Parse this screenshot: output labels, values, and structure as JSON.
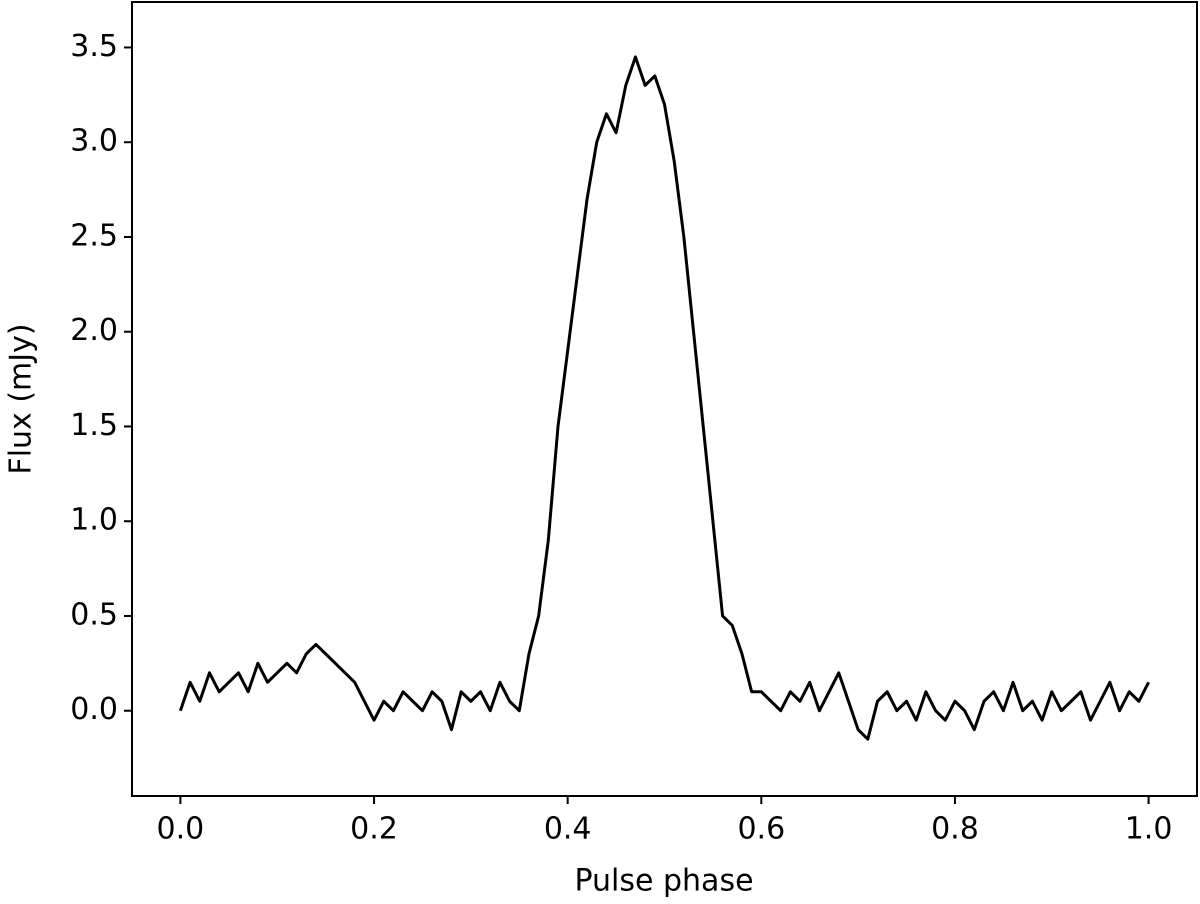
{
  "chart_data": {
    "type": "line",
    "xlabel": "Pulse phase",
    "ylabel": "Flux (mJy)",
    "x": [
      0.0,
      0.01,
      0.02,
      0.03,
      0.04,
      0.05,
      0.06,
      0.07,
      0.08,
      0.09,
      0.1,
      0.11,
      0.12,
      0.13,
      0.14,
      0.15,
      0.16,
      0.17,
      0.18,
      0.19,
      0.2,
      0.21,
      0.22,
      0.23,
      0.24,
      0.25,
      0.26,
      0.27,
      0.28,
      0.29,
      0.3,
      0.31,
      0.32,
      0.33,
      0.34,
      0.35,
      0.36,
      0.37,
      0.38,
      0.39,
      0.4,
      0.41,
      0.42,
      0.43,
      0.44,
      0.45,
      0.46,
      0.47,
      0.48,
      0.49,
      0.5,
      0.51,
      0.52,
      0.53,
      0.54,
      0.55,
      0.56,
      0.57,
      0.58,
      0.59,
      0.6,
      0.61,
      0.62,
      0.63,
      0.64,
      0.65,
      0.66,
      0.67,
      0.68,
      0.69,
      0.7,
      0.71,
      0.72,
      0.73,
      0.74,
      0.75,
      0.76,
      0.77,
      0.78,
      0.79,
      0.8,
      0.81,
      0.82,
      0.83,
      0.84,
      0.85,
      0.86,
      0.87,
      0.88,
      0.89,
      0.9,
      0.91,
      0.92,
      0.93,
      0.94,
      0.95,
      0.96,
      0.97,
      0.98,
      0.99,
      1.0
    ],
    "series": [
      {
        "name": "Flux",
        "color": "#000000",
        "values": [
          0.0,
          0.15,
          0.05,
          0.2,
          0.1,
          0.15,
          0.2,
          0.1,
          0.25,
          0.15,
          0.2,
          0.25,
          0.2,
          0.3,
          0.35,
          0.3,
          0.25,
          0.2,
          0.15,
          0.05,
          -0.05,
          0.05,
          0.0,
          0.1,
          0.05,
          0.0,
          0.1,
          0.05,
          -0.1,
          0.1,
          0.05,
          0.1,
          0.0,
          0.15,
          0.05,
          0.0,
          0.3,
          0.5,
          0.9,
          1.5,
          1.9,
          2.3,
          2.7,
          3.0,
          3.15,
          3.05,
          3.3,
          3.45,
          3.3,
          3.35,
          3.2,
          2.9,
          2.5,
          2.0,
          1.5,
          1.0,
          0.5,
          0.45,
          0.3,
          0.1,
          0.1,
          0.05,
          0.0,
          0.1,
          0.05,
          0.15,
          0.0,
          0.1,
          0.2,
          0.05,
          -0.1,
          -0.15,
          0.05,
          0.1,
          0.0,
          0.05,
          -0.05,
          0.1,
          0.0,
          -0.05,
          0.05,
          0.0,
          -0.1,
          0.05,
          0.1,
          0.0,
          0.15,
          0.0,
          0.05,
          -0.05,
          0.1,
          0.0,
          0.05,
          0.1,
          -0.05,
          0.05,
          0.15,
          0.0,
          0.1,
          0.05,
          0.15
        ]
      }
    ],
    "xlim": [
      -0.05,
      1.05
    ],
    "ylim": [
      -0.45,
      3.74
    ],
    "xticks": [
      {
        "value": 0,
        "label": "0.0"
      },
      0.2,
      0.4,
      0.6,
      0.8,
      {
        "value": 1,
        "label": "1.0"
      }
    ],
    "yticks": [
      {
        "value": 0,
        "label": "0.0"
      },
      0.5,
      {
        "value": 1,
        "label": "1.0"
      },
      1.5,
      {
        "value": 2,
        "label": "2.0"
      },
      2.5,
      {
        "value": 3,
        "label": "3.0"
      },
      3.5
    ],
    "grid": false
  }
}
